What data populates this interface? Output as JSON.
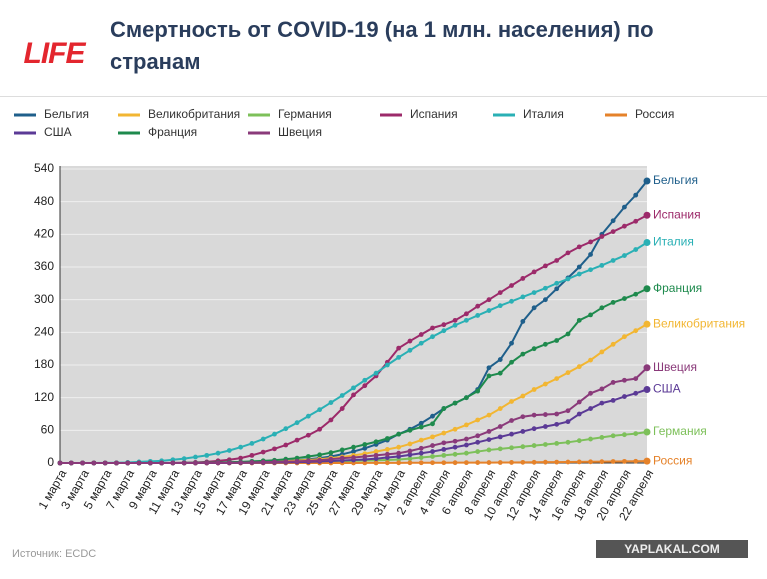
{
  "logo": "LIFE",
  "source": "Источник: ECDC",
  "watermark": "YAPLAKAL.COM",
  "chart_data": {
    "type": "line",
    "title": "Смертность от COVID-19 (на 1 млн. населения) по странам",
    "categories": [
      "1 марта",
      null,
      "3 марта",
      null,
      "5 марта",
      null,
      "7 марта",
      null,
      "9 марта",
      null,
      "11 марта",
      null,
      "13 марта",
      null,
      "15 марта",
      null,
      "17 марта",
      null,
      "19 марта",
      null,
      "21 марта",
      null,
      "23 марта",
      null,
      "25 марта",
      null,
      "27 марта",
      null,
      "29 марта",
      null,
      "31 марта",
      null,
      "2 апреля",
      null,
      "4 апреля",
      null,
      "6 апреля",
      null,
      "8 апреля",
      null,
      "10 апреля",
      null,
      "12 апреля",
      null,
      "14 апреля",
      null,
      "16 апреля",
      null,
      "18 апреля",
      null,
      "20 апреля",
      null,
      "22 апреля"
    ],
    "ylim": [
      0,
      540
    ],
    "yticks": [
      0,
      60,
      120,
      180,
      240,
      300,
      360,
      420,
      480,
      540
    ],
    "grid": true,
    "legend": "top",
    "series": [
      {
        "name": "Бельгия",
        "color": "#1f5f8b",
        "values": [
          0,
          0,
          0,
          0,
          0,
          0,
          0,
          0,
          0,
          0,
          0,
          0.1,
          0.2,
          0.3,
          0.4,
          0.6,
          0.9,
          1.3,
          1.8,
          2.5,
          3.5,
          5,
          7,
          9,
          12,
          16,
          21,
          27,
          34,
          42,
          53,
          62,
          73,
          86,
          100,
          110,
          120,
          135,
          175,
          190,
          220,
          260,
          285,
          300,
          320,
          340,
          360,
          383,
          420,
          445,
          470,
          492,
          518
        ]
      },
      {
        "name": "Великобритания",
        "color": "#f2b632",
        "values": [
          0,
          0,
          0,
          0,
          0,
          0,
          0,
          0,
          0,
          0,
          0,
          0,
          0,
          0,
          0.3,
          0.5,
          0.8,
          1,
          2,
          2.5,
          3.5,
          4.5,
          5.5,
          7,
          9,
          11,
          14,
          17,
          21,
          25,
          29,
          35,
          42,
          48,
          55,
          62,
          70,
          79,
          88,
          100,
          113,
          123,
          135,
          145,
          155,
          166,
          177,
          189,
          204,
          218,
          232,
          243,
          255
        ]
      },
      {
        "name": "Германия",
        "color": "#7dc05a",
        "values": [
          0,
          0,
          0,
          0,
          0,
          0,
          0,
          0,
          0,
          0,
          0,
          0,
          0,
          0,
          0.1,
          0.2,
          0.3,
          0.4,
          0.5,
          0.8,
          1,
          1.3,
          1.6,
          2,
          2.6,
          3.2,
          3.8,
          4.5,
          5,
          5.5,
          6.5,
          8,
          10,
          12,
          14,
          16,
          18,
          21,
          24,
          26,
          28,
          30,
          32,
          34,
          36,
          38,
          41,
          44,
          47,
          50,
          52,
          54,
          57
        ]
      },
      {
        "name": "Испания",
        "color": "#9c2a6a",
        "values": [
          0,
          0,
          0,
          0,
          0,
          0,
          0,
          0,
          0,
          0.1,
          0.2,
          0.5,
          1,
          2,
          4,
          6,
          9,
          14,
          20,
          26,
          33,
          42,
          51,
          62,
          79,
          100,
          125,
          142,
          160,
          185,
          211,
          224,
          236,
          248,
          254,
          262,
          274,
          288,
          300,
          313,
          326,
          339,
          351,
          362,
          372,
          386,
          397,
          406,
          416,
          425,
          435,
          444,
          455
        ]
      },
      {
        "name": "Италия",
        "color": "#2ab0b5",
        "values": [
          0,
          0,
          0,
          0.1,
          0.2,
          0.5,
          1,
          2,
          3,
          4,
          6,
          8,
          11,
          14,
          18,
          23,
          29,
          36,
          44,
          53,
          63,
          74,
          86,
          98,
          111,
          124,
          138,
          152,
          165,
          180,
          194,
          207,
          220,
          232,
          243,
          253,
          262,
          271,
          280,
          289,
          297,
          305,
          313,
          321,
          330,
          338,
          347,
          355,
          363,
          372,
          381,
          392,
          405
        ]
      },
      {
        "name": "Россия",
        "color": "#e5822a",
        "values": [
          0,
          0,
          0,
          0,
          0,
          0,
          0,
          0,
          0,
          0,
          0,
          0,
          0,
          0,
          0,
          0,
          0,
          0,
          0,
          0,
          0,
          0,
          0,
          0,
          0.1,
          0.1,
          0.1,
          0.2,
          0.2,
          0.3,
          0.3,
          0.4,
          0.4,
          0.5,
          0.5,
          0.6,
          0.7,
          0.8,
          0.8,
          0.9,
          1,
          1.2,
          1.3,
          1.5,
          1.6,
          1.8,
          2,
          2.2,
          2.5,
          2.8,
          3,
          3.2,
          3.5
        ]
      },
      {
        "name": "США",
        "color": "#5b3a96",
        "values": [
          0,
          0,
          0,
          0,
          0,
          0,
          0,
          0,
          0,
          0,
          0,
          0,
          0,
          0.1,
          0.1,
          0.2,
          0.3,
          0.5,
          0.7,
          0.9,
          1.2,
          1.6,
          2,
          2.8,
          3.6,
          4.5,
          5.5,
          6.5,
          8,
          10,
          12,
          15,
          18,
          21,
          25,
          29,
          33,
          38,
          43,
          48,
          53,
          58,
          63,
          67,
          71,
          76,
          90,
          100,
          110,
          115,
          122,
          128,
          135
        ]
      },
      {
        "name": "Франция",
        "color": "#1e8a4d",
        "values": [
          0,
          0,
          0,
          0,
          0,
          0,
          0,
          0,
          0,
          0,
          0.1,
          0.2,
          0.4,
          0.6,
          1,
          1.5,
          2,
          3,
          4,
          5,
          7,
          9,
          12,
          15,
          19,
          24,
          29,
          34,
          39,
          45,
          53,
          60,
          66,
          72,
          100,
          110,
          120,
          132,
          160,
          165,
          185,
          200,
          210,
          218,
          225,
          237,
          262,
          272,
          285,
          295,
          302,
          310,
          320
        ]
      },
      {
        "name": "Швеция",
        "color": "#8a3a7a",
        "values": [
          0,
          0,
          0,
          0,
          0,
          0,
          0,
          0,
          0,
          0,
          0.1,
          0.1,
          0.1,
          0.2,
          0.3,
          0.5,
          0.7,
          1,
          1.5,
          2,
          2.5,
          3,
          4,
          5,
          7,
          9,
          10,
          12,
          14,
          16,
          18,
          22,
          27,
          32,
          37,
          40,
          44,
          50,
          58,
          67,
          78,
          85,
          88,
          89,
          90,
          96,
          112,
          128,
          136,
          148,
          152,
          155,
          175
        ]
      }
    ]
  }
}
